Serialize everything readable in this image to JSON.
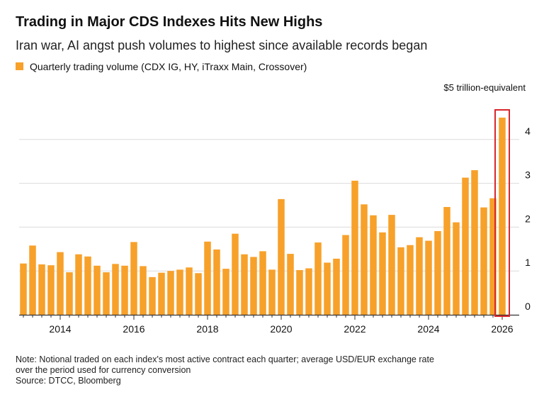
{
  "colors": {
    "bar": "#f7a12a",
    "highlight_box": "#d9262b",
    "grid": "#dcdcdc",
    "axis": "#333333"
  },
  "header": {
    "title": "Trading in Major CDS Indexes Hits New Highs",
    "subtitle": "Iran war, AI angst push volumes to highest since available records began"
  },
  "footer": {
    "note_line1": "Note: Notional traded on each index's most active contract each quarter; average USD/EUR exchange rate",
    "note_line2": "over the period used for currency conversion",
    "source": "Source: DTCC, Bloomberg"
  },
  "chart_data": {
    "type": "bar",
    "legend": [
      "Quarterly trading volume (CDX IG, HY, iTraxx Main, Crossover)"
    ],
    "legend_placement": "top-left",
    "unit_label": "$5 trillion-equivalent",
    "y_axis_side": "right",
    "ylim": [
      0,
      4.6
    ],
    "yticks": [
      "0",
      "1",
      "2",
      "3",
      "4"
    ],
    "xticks": [
      "2014",
      "2016",
      "2018",
      "2020",
      "2022",
      "2024",
      "2026"
    ],
    "grid": true,
    "highlighted_category": "2026 Q1",
    "categories": [
      "2013 Q1",
      "2013 Q2",
      "2013 Q3",
      "2013 Q4",
      "2014 Q1",
      "2014 Q2",
      "2014 Q3",
      "2014 Q4",
      "2015 Q1",
      "2015 Q2",
      "2015 Q3",
      "2015 Q4",
      "2016 Q1",
      "2016 Q2",
      "2016 Q3",
      "2016 Q4",
      "2017 Q1",
      "2017 Q2",
      "2017 Q3",
      "2017 Q4",
      "2018 Q1",
      "2018 Q2",
      "2018 Q3",
      "2018 Q4",
      "2019 Q1",
      "2019 Q2",
      "2019 Q3",
      "2019 Q4",
      "2020 Q1",
      "2020 Q2",
      "2020 Q3",
      "2020 Q4",
      "2021 Q1",
      "2021 Q2",
      "2021 Q3",
      "2021 Q4",
      "2022 Q1",
      "2022 Q2",
      "2022 Q3",
      "2022 Q4",
      "2023 Q1",
      "2023 Q2",
      "2023 Q3",
      "2023 Q4",
      "2024 Q1",
      "2024 Q2",
      "2024 Q3",
      "2024 Q4",
      "2025 Q1",
      "2025 Q2",
      "2025 Q3",
      "2025 Q4",
      "2026 Q1"
    ],
    "values": [
      1.17,
      1.58,
      1.15,
      1.13,
      1.43,
      0.97,
      1.38,
      1.33,
      1.12,
      0.97,
      1.16,
      1.12,
      1.66,
      1.11,
      0.86,
      0.96,
      1.0,
      1.03,
      1.08,
      0.95,
      1.67,
      1.49,
      1.05,
      1.85,
      1.38,
      1.32,
      1.45,
      1.03,
      2.64,
      1.39,
      1.02,
      1.06,
      1.65,
      1.19,
      1.28,
      1.82,
      3.06,
      2.52,
      2.27,
      1.88,
      2.28,
      1.54,
      1.59,
      1.77,
      1.69,
      1.91,
      2.46,
      2.11,
      3.13,
      3.3,
      2.45,
      2.66,
      4.5
    ]
  }
}
